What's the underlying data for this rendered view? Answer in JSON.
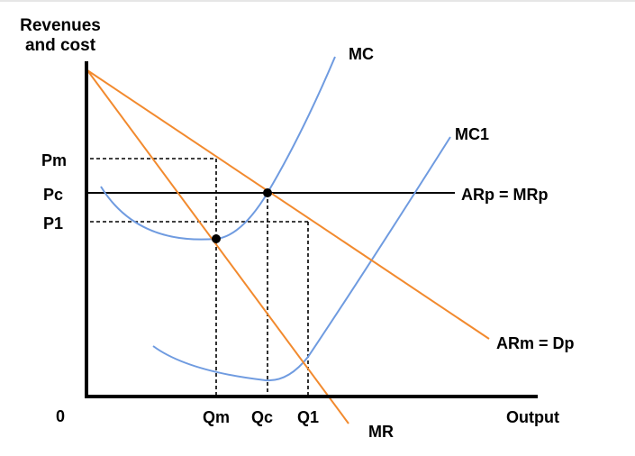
{
  "axes": {
    "y_title_line1": "Revenues",
    "y_title_line2": "and cost",
    "x_title": "Output",
    "origin": "0"
  },
  "price_labels": {
    "pm": "Pm",
    "pc": "Pc",
    "p1": "P1"
  },
  "quantity_labels": {
    "qm": "Qm",
    "qc": "Qc",
    "q1": "Q1"
  },
  "curves": {
    "mc": "MC",
    "mc1": "MC1",
    "arp_mrp": "ARp = MRp",
    "arm_dp": "ARm = Dp",
    "mr": "MR"
  },
  "colors": {
    "cost_curves": "#6f9be0",
    "revenue_curves": "#f28a2e",
    "axes_and_guides": "#000000"
  }
}
